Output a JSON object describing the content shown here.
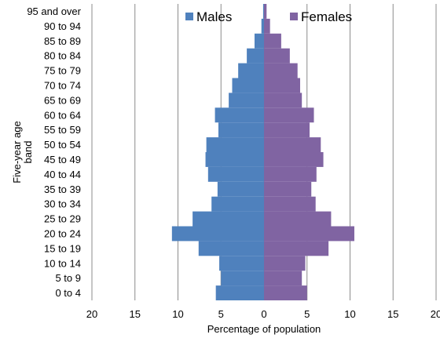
{
  "chart_data": {
    "type": "bar",
    "orientation": "horizontal-population-pyramid",
    "categories": [
      "0 to 4",
      "5 to 9",
      "10 to 14",
      "15 to 19",
      "20 to 24",
      "25 to 29",
      "30 to 34",
      "35 to 39",
      "40 to 44",
      "45 to 49",
      "50 to 54",
      "55 to 59",
      "60 to 64",
      "65 to 69",
      "70 to 74",
      "75 to 79",
      "80 to 84",
      "85 to 89",
      "90 to 94",
      "95 and over"
    ],
    "series": [
      {
        "name": "Males",
        "color": "#4F81BD",
        "side": "left",
        "values": [
          5.6,
          5.0,
          5.2,
          7.6,
          10.7,
          8.3,
          6.1,
          5.4,
          6.5,
          6.8,
          6.7,
          5.3,
          5.7,
          4.1,
          3.7,
          3.0,
          2.0,
          1.1,
          0.3,
          0.1
        ]
      },
      {
        "name": "Females",
        "color": "#8064A2",
        "side": "right",
        "values": [
          5.0,
          4.4,
          4.8,
          7.5,
          10.5,
          7.8,
          6.0,
          5.5,
          6.1,
          6.9,
          6.6,
          5.3,
          5.8,
          4.4,
          4.2,
          3.9,
          3.0,
          2.0,
          0.7,
          0.3
        ]
      }
    ],
    "x_tick_labels": [
      "20",
      "15",
      "10",
      "5",
      "0",
      "5",
      "10",
      "15",
      "20"
    ],
    "xlabel": "Percentage of population",
    "ylabel": "Five-year age band",
    "xlim": [
      -20,
      20
    ],
    "grid": "vertical",
    "legend_position": "top"
  }
}
